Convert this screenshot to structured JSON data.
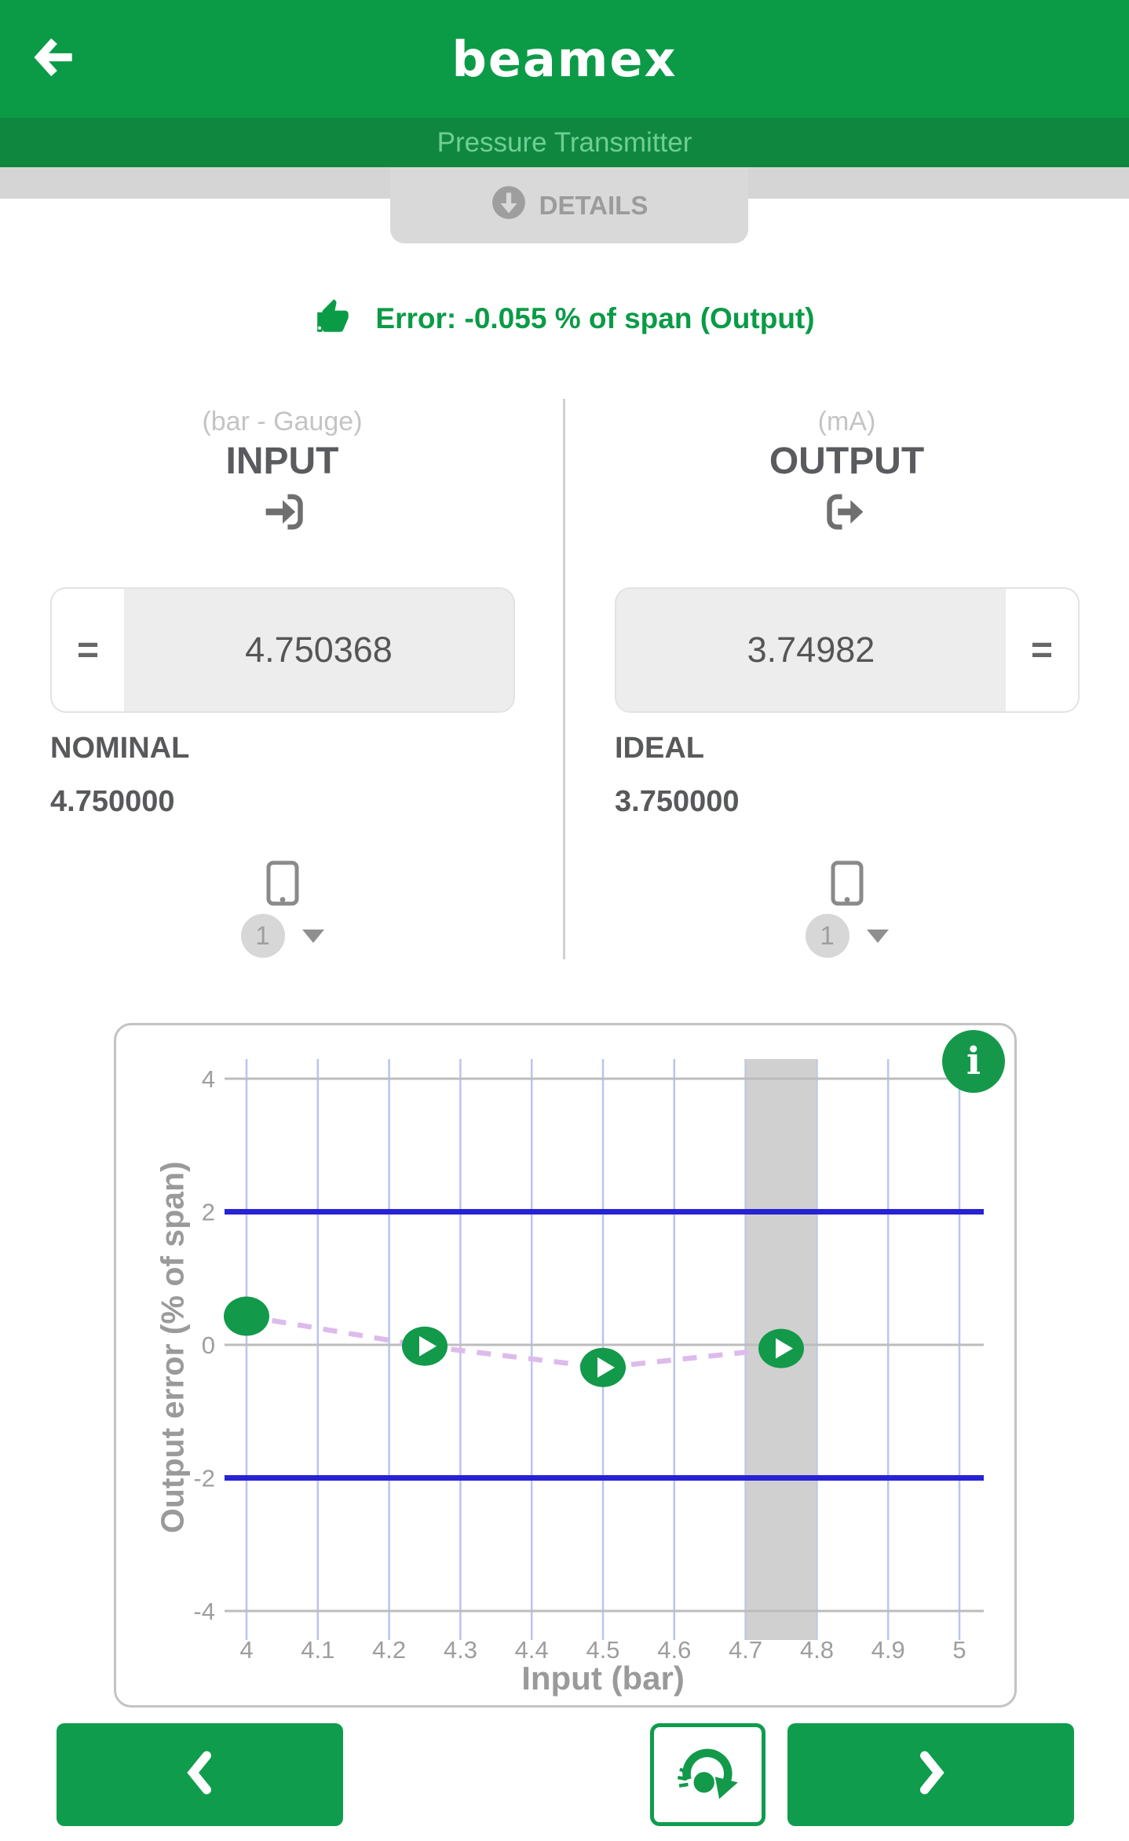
{
  "header": {
    "app_title": "beamex",
    "subtitle": "Pressure Transmitter"
  },
  "details_button": {
    "label": "DETAILS"
  },
  "status": {
    "text": "Error: -0.055 % of span (Output)"
  },
  "panels": {
    "input": {
      "unit_label": "(bar - Gauge)",
      "title": "INPUT",
      "equals_label": "=",
      "value": "4.750368",
      "reference_label": "NOMINAL",
      "reference_value": "4.750000",
      "channel": "1"
    },
    "output": {
      "unit_label": "(mA)",
      "title": "OUTPUT",
      "equals_label": "=",
      "value": "3.74982",
      "reference_label": "IDEAL",
      "reference_value": "3.750000",
      "channel": "1"
    }
  },
  "chart_data": {
    "type": "scatter",
    "xlabel": "Input (bar)",
    "ylabel": "Output error (% of span)",
    "info_label": "i",
    "x_ticks": [
      "4",
      "4.1",
      "4.2",
      "4.3",
      "4.4",
      "4.5",
      "4.6",
      "4.7",
      "4.8",
      "4.9",
      "5"
    ],
    "y_ticks": [
      "4",
      "2",
      "0",
      "-2",
      "-4"
    ],
    "h_gridlines": [
      4,
      0,
      -4
    ],
    "xlim": [
      4,
      5
    ],
    "ylim": [
      -4.6,
      4.6
    ],
    "series": [
      {
        "name": "Output error",
        "x": [
          4.0,
          4.25,
          4.5,
          4.75
        ],
        "y": [
          0.43,
          -0.02,
          -0.34,
          -0.055
        ],
        "style": "dashed"
      }
    ],
    "marker_has_arrow": [
      false,
      true,
      true,
      true
    ],
    "limit_lines": {
      "values": [
        2,
        -2
      ],
      "color": "#2722d3"
    },
    "highlight_band": {
      "x_from": 4.7,
      "x_to": 4.8,
      "color": "#cbcbcb"
    },
    "grid": true,
    "legend": "none",
    "colors": {
      "marker": "#12994a",
      "dashed_line": "#ddbbec",
      "v_grid": "#b9c4f2",
      "h_grid": "#bdbdbd",
      "tick_label": "#9e9e9e",
      "axis_label": "#9a9a9a"
    }
  },
  "footer": {
    "prev_icon": "chevron-left",
    "center_icon": "gauge-reset",
    "next_icon": "chevron-right"
  },
  "colors": {
    "header_green": "#0b9b47",
    "subheader_green": "#10873f",
    "subheader_text": "#6ecf95",
    "status_green": "#0a9b46",
    "button_green": "#0f9c4d",
    "details_gray": "#9b9b9b",
    "field_gray": "#ededed",
    "text_dark": "#58595b",
    "text_light": "#c4c4c4",
    "limit_blue": "#2722d3"
  }
}
